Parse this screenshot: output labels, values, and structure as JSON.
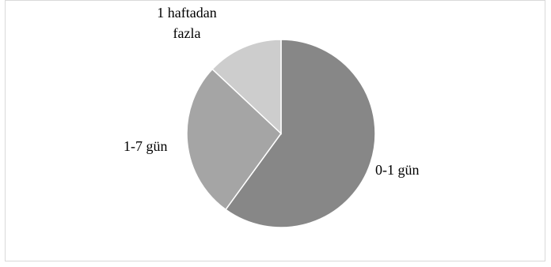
{
  "chart_data": {
    "type": "pie",
    "title": "",
    "slices": [
      {
        "label": "0-1 gün",
        "value": 60,
        "color": "#878787"
      },
      {
        "label": "1-7 gün",
        "value": 27,
        "color": "#a5a5a5"
      },
      {
        "label_lines": [
          "1 haftadan",
          "fazla"
        ],
        "value": 13,
        "color": "#cdcdcd"
      }
    ],
    "legend": "none",
    "start_angle_deg": 0,
    "direction": "clockwise"
  }
}
